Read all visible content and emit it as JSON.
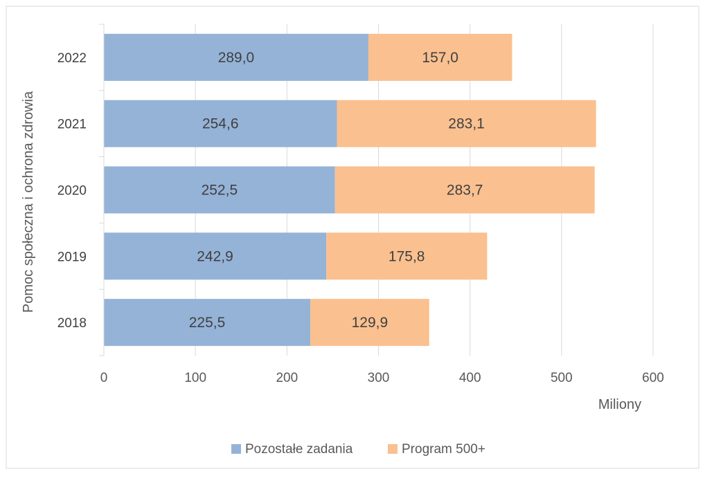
{
  "chart_data": {
    "type": "bar",
    "orientation": "horizontal",
    "stacked": true,
    "categories": [
      "2022",
      "2021",
      "2020",
      "2019",
      "2018"
    ],
    "category_axis_label": "Pomoc społeczna i ochrona zdrowia",
    "value_axis_label": "Miliony",
    "xlim": [
      0,
      600
    ],
    "x_ticks": [
      "0",
      "100",
      "200",
      "300",
      "400",
      "500",
      "600"
    ],
    "grid": true,
    "legend_position": "bottom",
    "series": [
      {
        "name": "Pozostałe zadania",
        "color": "#95B3D7",
        "values": [
          289.0,
          254.6,
          252.5,
          242.9,
          225.5
        ],
        "labels": [
          "289,0",
          "254,6",
          "252,5",
          "242,9",
          "225,5"
        ]
      },
      {
        "name": "Program 500+",
        "color": "#FAC090",
        "values": [
          157.0,
          283.1,
          283.7,
          175.8,
          129.9
        ],
        "labels": [
          "157,0",
          "283,1",
          "283,7",
          "175,8",
          "129,9"
        ]
      }
    ]
  }
}
